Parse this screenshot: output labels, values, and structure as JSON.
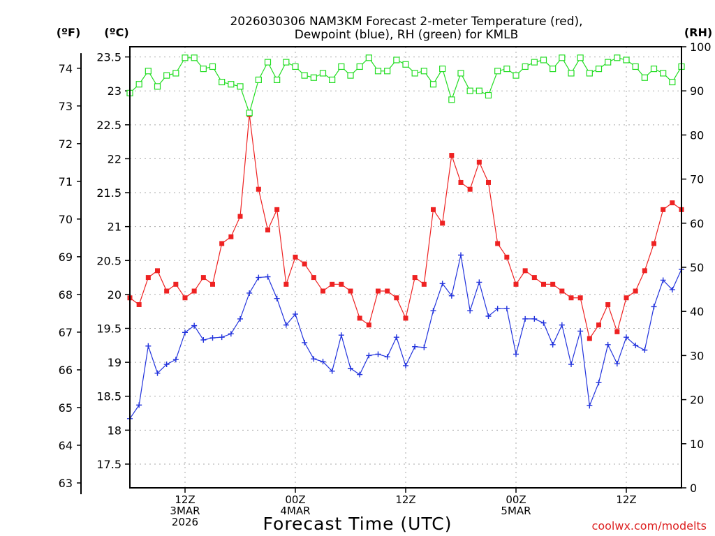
{
  "chart_data": {
    "type": "line",
    "title": "2026030306 NAM3KM Forecast 2-meter Temperature (red),\nDewpoint (blue), RH (green) for KMLB",
    "xlabel": "Forecast Time (UTC)",
    "credit": "coolwx.com/modelts",
    "unit_labels": {
      "fahrenheit": "(ºF)",
      "celsius": "(ºC)",
      "rh": "(RH)"
    },
    "x_start": "2026-03-03 06Z",
    "x_step_hours": 1,
    "x_ticks": [
      {
        "hour": 6,
        "lines": [
          "12Z",
          "3MAR",
          "2026"
        ]
      },
      {
        "hour": 18,
        "lines": [
          "00Z",
          "4MAR"
        ]
      },
      {
        "hour": 30,
        "lines": [
          "12Z"
        ]
      },
      {
        "hour": 42,
        "lines": [
          "00Z",
          "5MAR"
        ]
      },
      {
        "hour": 54,
        "lines": [
          "12Z"
        ]
      }
    ],
    "x_range": [
      0,
      60
    ],
    "ylim_celsius": [
      17.15,
      23.65
    ],
    "ylim_rh": [
      0,
      100
    ],
    "celsius_ticks": [
      17.5,
      18,
      18.5,
      19,
      19.5,
      20,
      20.5,
      21,
      21.5,
      22,
      22.5,
      23,
      23.5
    ],
    "fahrenheit_ticks": [
      63,
      64,
      65,
      66,
      67,
      68,
      69,
      70,
      71,
      72,
      73,
      74
    ],
    "rh_ticks": [
      0,
      10,
      20,
      30,
      40,
      50,
      60,
      70,
      80,
      90,
      100
    ],
    "grid": true,
    "series": [
      {
        "name": "Temperature",
        "axis": "celsius",
        "color": "#ee2222",
        "marker": "filled-square",
        "values": [
          19.95,
          19.85,
          20.25,
          20.35,
          20.05,
          20.15,
          19.95,
          20.05,
          20.25,
          20.15,
          20.75,
          20.85,
          21.15,
          22.65,
          21.55,
          20.95,
          21.25,
          20.15,
          20.55,
          20.45,
          20.25,
          20.05,
          20.15,
          20.15,
          20.05,
          19.65,
          19.55,
          20.05,
          20.05,
          19.95,
          19.65,
          20.25,
          20.15,
          21.25,
          21.05,
          22.05,
          21.65,
          21.55,
          21.95,
          21.65,
          20.75,
          20.55,
          20.15,
          20.35,
          20.25,
          20.15,
          20.15,
          20.05,
          19.95,
          19.95,
          19.35,
          19.55,
          19.85,
          19.45,
          19.95,
          20.05,
          20.35,
          20.75,
          21.25,
          21.35,
          21.25
        ]
      },
      {
        "name": "Dewpoint",
        "axis": "celsius",
        "color": "#2233dd",
        "marker": "plus",
        "values": [
          18.17,
          18.37,
          19.24,
          18.84,
          18.97,
          19.04,
          19.44,
          19.54,
          19.33,
          19.36,
          19.37,
          19.42,
          19.64,
          20.02,
          20.25,
          20.26,
          19.94,
          19.55,
          19.71,
          19.29,
          19.05,
          19.01,
          18.87,
          19.4,
          18.91,
          18.82,
          19.1,
          19.12,
          19.08,
          19.37,
          18.95,
          19.23,
          19.22,
          19.76,
          20.16,
          19.98,
          20.58,
          19.76,
          20.18,
          19.68,
          19.79,
          19.79,
          19.12,
          19.64,
          19.64,
          19.58,
          19.26,
          19.55,
          18.97,
          19.46,
          18.36,
          18.7,
          19.26,
          18.98,
          19.37,
          19.25,
          19.18,
          19.82,
          20.21,
          20.07,
          20.37
        ]
      },
      {
        "name": "RH",
        "axis": "rh",
        "color": "#22dd22",
        "marker": "open-square",
        "values": [
          89.5,
          91.5,
          94.5,
          91,
          93.5,
          94,
          97.5,
          97.5,
          95,
          95.5,
          92,
          91.5,
          91,
          85,
          92.5,
          96.5,
          92.5,
          96.5,
          95.5,
          93.5,
          93,
          94,
          92.5,
          95.5,
          93.5,
          95.5,
          97.5,
          94.5,
          94.5,
          97,
          96,
          94,
          94.5,
          91.5,
          95,
          88,
          94,
          90,
          90,
          89,
          94.5,
          95,
          93.5,
          95.5,
          96.5,
          97,
          95,
          97.5,
          94,
          97.5,
          94,
          95,
          96.5,
          97.5,
          97,
          95.5,
          93,
          95,
          94,
          92,
          95.5
        ]
      }
    ]
  }
}
